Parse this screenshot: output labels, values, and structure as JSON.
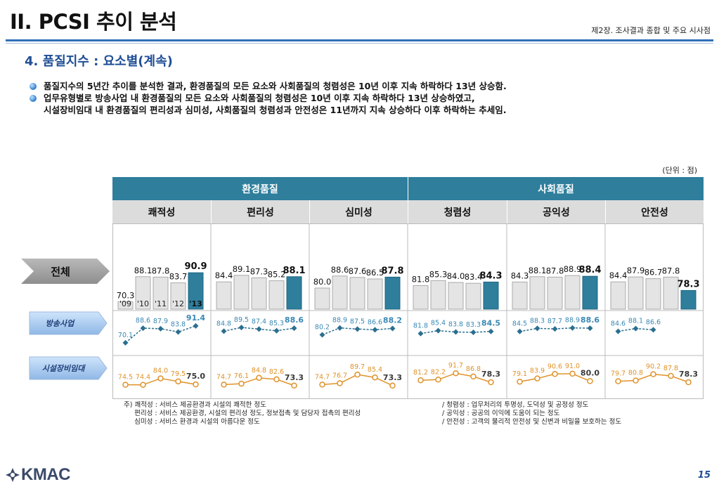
{
  "header": {
    "title": "II. PCSI 추이 분석",
    "chapter": "제2장. 조사결과 종합 및 주요 시사점",
    "section": "4. 품질지수 : 요소별(계속)"
  },
  "bullets": [
    [
      "품질지수의 5년간 추이를 분석한 결과, 환경품질의 모든 요소와 사회품질의 청렴성은 10년 이후 지속 하락하다 13년 상승함."
    ],
    [
      "업무유형별로 방송사업 내 환경품질의 모든 요소와 사회품질의 청렴성은 10년 이후 지속 하락하다 13년 상승하였고,",
      "시설장비임대 내 환경품질의 편리성과 심미성, 사회품질의 청렴성과 안전성은 11년까지 지속 상승하다 이후 하락하는 추세임."
    ]
  ],
  "unit": "(단위 : 점)",
  "groups": [
    "환경품질",
    "사회품질"
  ],
  "row_labels": {
    "total": "전체",
    "broadcast": "방송사업",
    "rental": "시설장비임대"
  },
  "colors": {
    "accent": "#2e7e9c",
    "header_gray": "#dcdcdc",
    "bar_gray": "#e4e4e4",
    "broadcast_text": "#3a88b4",
    "broadcast_line": "#2b6f8f",
    "rental_text": "#e0922a",
    "rental_highlight": "#3a3a3a"
  },
  "chart_data": {
    "type": "bar",
    "categories": [
      "'09",
      "'10",
      "'11",
      "'12",
      "'13"
    ],
    "panels": [
      {
        "name": "쾌적성",
        "group": "환경품질",
        "total": [
          70.3,
          88.1,
          87.8,
          83.7,
          90.9
        ],
        "broadcast": [
          70.1,
          88.6,
          87.9,
          83.8,
          91.4
        ],
        "rental": [
          74.5,
          74.4,
          84.0,
          79.5,
          75.0
        ]
      },
      {
        "name": "편리성",
        "group": "환경품질",
        "total": [
          84.4,
          89.1,
          87.3,
          85.2,
          88.1
        ],
        "broadcast": [
          84.8,
          89.5,
          87.4,
          85.3,
          88.6
        ],
        "rental": [
          74.7,
          76.1,
          84.8,
          82.6,
          73.3
        ]
      },
      {
        "name": "심미성",
        "group": "환경품질",
        "total": [
          80.0,
          88.6,
          87.6,
          86.5,
          87.8
        ],
        "broadcast": [
          80.2,
          88.9,
          87.5,
          86.6,
          88.2
        ],
        "rental": [
          74.7,
          76.7,
          89.7,
          85.4,
          73.3
        ]
      },
      {
        "name": "청렴성",
        "group": "사회품질",
        "total": [
          81.8,
          85.3,
          84.0,
          83.4,
          84.3
        ],
        "broadcast": [
          81.8,
          85.4,
          83.8,
          83.3,
          84.5
        ],
        "rental": [
          81.2,
          82.2,
          91.7,
          86.8,
          78.3
        ]
      },
      {
        "name": "공익성",
        "group": "사회품질",
        "total": [
          84.3,
          88.1,
          87.8,
          88.9,
          88.4
        ],
        "broadcast": [
          84.5,
          88.3,
          87.7,
          88.9,
          88.6
        ],
        "rental": [
          79.1,
          83.9,
          90.6,
          91.0,
          80.0
        ]
      },
      {
        "name": "안전성",
        "group": "사회품질",
        "total": [
          84.4,
          87.9,
          86.7,
          87.8,
          78.3
        ],
        "broadcast": [
          84.6,
          88.1,
          86.6,
          null,
          null
        ],
        "rental": [
          79.7,
          80.8,
          90.2,
          87.8,
          78.3
        ]
      }
    ]
  },
  "notes": {
    "left": [
      "주) 쾌적성 : 서비스 제공환경과 시설의 쾌적한 정도",
      "     편리성 : 서비스 제공환경, 시설의 편리성 정도, 정보접촉 및 담당자 접촉의 편리성",
      "     심미성 : 서비스 환경과 시설의 아름다운 정도"
    ],
    "right": [
      "/ 청렴성 : 업무처리의 투명성, 도덕성 및 공정성 정도",
      "/ 공익성 : 공공의 이익에 도움이 되는 정도",
      "/ 안전성 : 고객의 물리적 안전성 및 신변과 비밀을 보호하는 정도"
    ]
  },
  "logo": {
    "text": "KMAC"
  },
  "page_number": "15"
}
